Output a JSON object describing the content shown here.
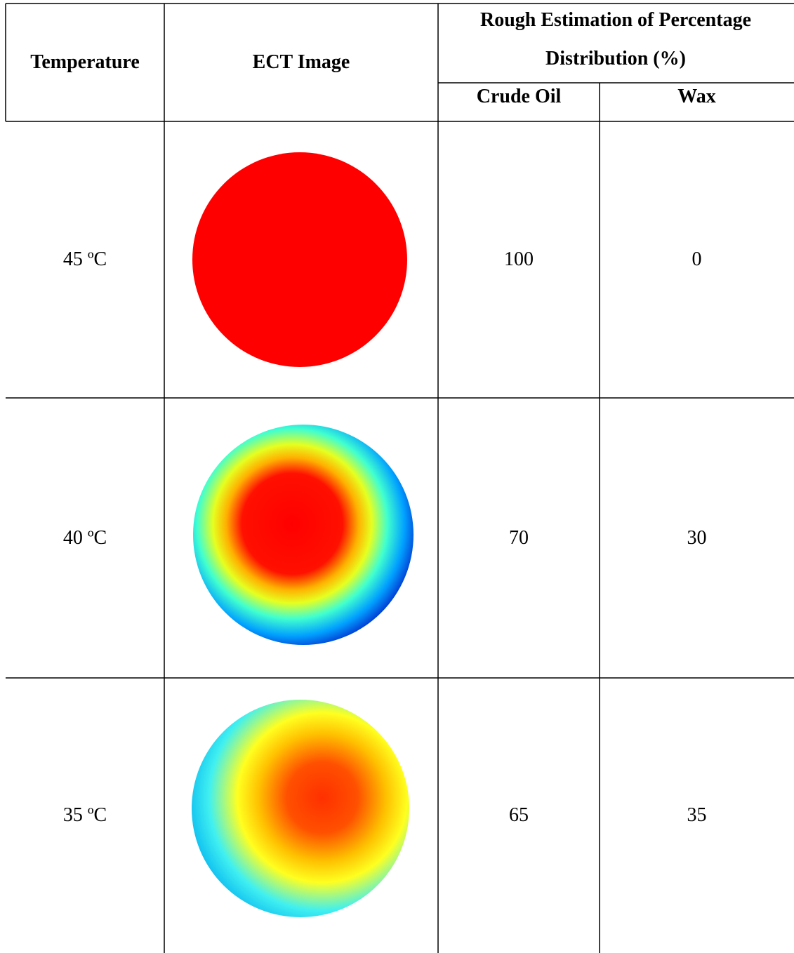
{
  "table": {
    "header": {
      "temperature": "Temperature",
      "image": "ECT Image",
      "distribution": "Rough Estimation of Percentage Distribution (%)",
      "crude_oil": "Crude Oil",
      "wax": "Wax"
    },
    "rows": [
      {
        "temperature": "45 ºC",
        "crude_oil": 100,
        "wax": 0
      },
      {
        "temperature": "40 ºC",
        "crude_oil": 70,
        "wax": 30
      },
      {
        "temperature": "35 ºC",
        "crude_oil": 65,
        "wax": 35
      }
    ]
  }
}
